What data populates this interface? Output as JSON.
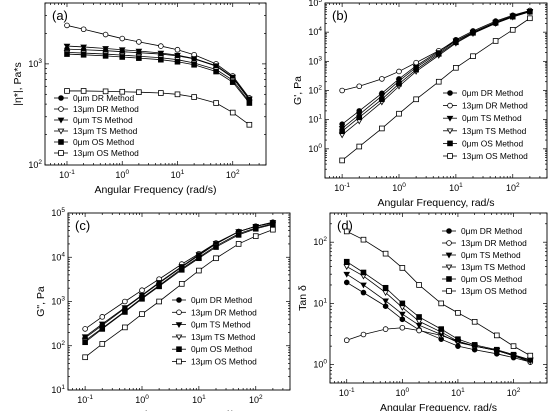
{
  "chart_data": [
    {
      "type": "scatter",
      "panel_label": "(a)",
      "xlabel": "Angular Frequency (rad/s)",
      "ylabel": "|η*|, Pa*s",
      "xscale": "log",
      "yscale": "log",
      "xlim": [
        0.04,
        400
      ],
      "ylim": [
        100,
        4000
      ],
      "x_ticks": [
        {
          "v": 0.1,
          "b": "10",
          "e": "-1"
        },
        {
          "v": 1,
          "b": "10",
          "e": "0"
        },
        {
          "v": 10,
          "b": "10",
          "e": "1"
        },
        {
          "v": 100,
          "b": "10",
          "e": "2"
        }
      ],
      "y_ticks": [
        {
          "v": 100,
          "b": "10",
          "e": "2"
        },
        {
          "v": 1000,
          "b": "10",
          "e": "3"
        }
      ],
      "legend_position": "lower-left",
      "series": [
        {
          "name": "0μm DR Method",
          "marker": "circle-filled",
          "x": [
            0.1,
            0.2,
            0.5,
            1,
            2,
            5,
            10,
            20,
            50,
            100,
            200
          ],
          "y": [
            1400,
            1380,
            1350,
            1320,
            1290,
            1250,
            1200,
            1120,
            950,
            730,
            440
          ]
        },
        {
          "name": "13μm DR Method",
          "marker": "circle-open",
          "x": [
            0.1,
            0.2,
            0.5,
            1,
            2,
            5,
            10,
            20,
            50,
            100,
            200
          ],
          "y": [
            2400,
            2200,
            1950,
            1780,
            1650,
            1500,
            1380,
            1230,
            1000,
            760,
            460
          ]
        },
        {
          "name": "0μm TS Method",
          "marker": "triangle-down-filled",
          "x": [
            0.1,
            0.2,
            0.5,
            1,
            2,
            5,
            10,
            20,
            50,
            100,
            200
          ],
          "y": [
            1500,
            1470,
            1420,
            1380,
            1340,
            1280,
            1220,
            1130,
            960,
            740,
            450
          ]
        },
        {
          "name": "13μm TS Method",
          "marker": "triangle-down-open",
          "x": [
            0.1,
            0.2,
            0.5,
            1,
            2,
            5,
            10,
            20,
            50,
            100,
            200
          ],
          "y": [
            1300,
            1280,
            1250,
            1220,
            1190,
            1150,
            1100,
            1020,
            880,
            690,
            420
          ]
        },
        {
          "name": "0μm OS Method",
          "marker": "square-filled",
          "x": [
            0.1,
            0.2,
            0.5,
            1,
            2,
            5,
            10,
            20,
            50,
            100,
            200
          ],
          "y": [
            1250,
            1230,
            1200,
            1170,
            1140,
            1100,
            1050,
            980,
            840,
            660,
            410
          ]
        },
        {
          "name": "13μm OS Method",
          "marker": "square-open",
          "x": [
            0.1,
            0.2,
            0.5,
            1,
            2,
            5,
            10,
            20,
            50,
            100,
            200
          ],
          "y": [
            540,
            540,
            535,
            530,
            525,
            515,
            500,
            470,
            410,
            330,
            250
          ]
        }
      ]
    },
    {
      "type": "scatter",
      "panel_label": "(b)",
      "xlabel": "Angular Frequency, rad/s",
      "ylabel": "G', Pa",
      "xscale": "log",
      "yscale": "log",
      "xlim": [
        0.05,
        400
      ],
      "ylim": [
        0.1,
        100000
      ],
      "x_ticks": [
        {
          "v": 0.1,
          "b": "10",
          "e": "-1"
        },
        {
          "v": 1,
          "b": "10",
          "e": "0"
        },
        {
          "v": 10,
          "b": "10",
          "e": "1"
        },
        {
          "v": 100,
          "b": "10",
          "e": "2"
        }
      ],
      "y_ticks": [
        {
          "v": 1,
          "b": "10",
          "e": "0"
        },
        {
          "v": 10,
          "b": "10",
          "e": "1"
        },
        {
          "v": 100,
          "b": "10",
          "e": "2"
        },
        {
          "v": 1000,
          "b": "10",
          "e": "3"
        },
        {
          "v": 10000,
          "b": "10",
          "e": "4"
        },
        {
          "v": 100000,
          "b": "10",
          "e": "5"
        }
      ],
      "legend_position": "lower-right",
      "series": [
        {
          "name": "0μm DR Method",
          "marker": "circle-filled",
          "x": [
            0.1,
            0.2,
            0.5,
            1,
            2,
            5,
            10,
            20,
            50,
            100,
            200
          ],
          "y": [
            7,
            20,
            80,
            250,
            700,
            2200,
            5500,
            11000,
            24000,
            38000,
            55000
          ]
        },
        {
          "name": "13μm DR Method",
          "marker": "circle-open",
          "x": [
            0.1,
            0.2,
            0.5,
            1,
            2,
            5,
            10,
            20,
            50,
            100,
            200
          ],
          "y": [
            100,
            140,
            250,
            450,
            900,
            2300,
            5000,
            9500,
            20000,
            35000,
            55000
          ]
        },
        {
          "name": "0μm TS Method",
          "marker": "triangle-down-filled",
          "x": [
            0.1,
            0.2,
            0.5,
            1,
            2,
            5,
            10,
            20,
            50,
            100,
            200
          ],
          "y": [
            5,
            15,
            65,
            210,
            620,
            2000,
            5000,
            10000,
            22000,
            36000,
            52000
          ]
        },
        {
          "name": "13μm TS Method",
          "marker": "triangle-down-open",
          "x": [
            0.1,
            0.2,
            0.5,
            1,
            2,
            5,
            10,
            20,
            50,
            100,
            200
          ],
          "y": [
            3,
            9,
            40,
            140,
            450,
            1600,
            4200,
            9000,
            20000,
            33000,
            50000
          ]
        },
        {
          "name": "0μm OS Method",
          "marker": "square-filled",
          "x": [
            0.1,
            0.2,
            0.5,
            1,
            2,
            5,
            10,
            20,
            50,
            100,
            200
          ],
          "y": [
            4,
            12,
            50,
            170,
            520,
            1800,
            4500,
            9500,
            21000,
            34000,
            50000
          ]
        },
        {
          "name": "13μm OS Method",
          "marker": "square-open",
          "x": [
            0.1,
            0.2,
            0.5,
            1,
            2,
            5,
            10,
            20,
            50,
            100,
            200
          ],
          "y": [
            0.4,
            1.2,
            5,
            16,
            50,
            200,
            600,
            1500,
            5000,
            12000,
            30000
          ]
        }
      ]
    },
    {
      "type": "scatter",
      "panel_label": "(c)",
      "xlabel": "Angular Frequency, rad/s",
      "ylabel": "G\", Pa",
      "xscale": "log",
      "yscale": "log",
      "xlim": [
        0.05,
        400
      ],
      "ylim": [
        10,
        100000
      ],
      "x_ticks": [
        {
          "v": 0.1,
          "b": "10",
          "e": "-1"
        },
        {
          "v": 1,
          "b": "10",
          "e": "0"
        },
        {
          "v": 10,
          "b": "10",
          "e": "1"
        },
        {
          "v": 100,
          "b": "10",
          "e": "2"
        }
      ],
      "y_ticks": [
        {
          "v": 10,
          "b": "10",
          "e": "1"
        },
        {
          "v": 100,
          "b": "10",
          "e": "2"
        },
        {
          "v": 1000,
          "b": "10",
          "e": "3"
        },
        {
          "v": 10000,
          "b": "10",
          "e": "4"
        },
        {
          "v": 100000,
          "b": "10",
          "e": "5"
        }
      ],
      "legend_position": "lower-right",
      "series": [
        {
          "name": "0μm DR Method",
          "marker": "circle-filled",
          "x": [
            0.1,
            0.2,
            0.5,
            1,
            2,
            5,
            10,
            20,
            50,
            100,
            200
          ],
          "y": [
            150,
            290,
            700,
            1350,
            2600,
            6000,
            11000,
            20000,
            38000,
            50000,
            62000
          ]
        },
        {
          "name": "13μm DR Method",
          "marker": "circle-open",
          "x": [
            0.1,
            0.2,
            0.5,
            1,
            2,
            5,
            10,
            20,
            50,
            100,
            200
          ],
          "y": [
            240,
            450,
            1000,
            1800,
            3200,
            7000,
            12000,
            21000,
            38000,
            50000,
            60000
          ]
        },
        {
          "name": "0μm TS Method",
          "marker": "triangle-down-filled",
          "x": [
            0.1,
            0.2,
            0.5,
            1,
            2,
            5,
            10,
            20,
            50,
            100,
            200
          ],
          "y": [
            160,
            310,
            730,
            1400,
            2700,
            6200,
            11500,
            20500,
            38000,
            50000,
            61000
          ]
        },
        {
          "name": "13μm TS Method",
          "marker": "triangle-down-open",
          "x": [
            0.1,
            0.2,
            0.5,
            1,
            2,
            5,
            10,
            20,
            50,
            100,
            200
          ],
          "y": [
            130,
            250,
            600,
            1200,
            2300,
            5500,
            10000,
            18000,
            34000,
            46000,
            57000
          ]
        },
        {
          "name": "0μm OS Method",
          "marker": "square-filled",
          "x": [
            0.1,
            0.2,
            0.5,
            1,
            2,
            5,
            10,
            20,
            50,
            100,
            200
          ],
          "y": [
            120,
            240,
            580,
            1150,
            2200,
            5200,
            9500,
            17000,
            32000,
            44000,
            55000
          ]
        },
        {
          "name": "13μm OS Method",
          "marker": "square-open",
          "x": [
            0.1,
            0.2,
            0.5,
            1,
            2,
            5,
            10,
            20,
            50,
            100,
            200
          ],
          "y": [
            55,
            110,
            260,
            520,
            1000,
            2500,
            5000,
            9500,
            20000,
            30000,
            42000
          ]
        }
      ]
    },
    {
      "type": "scatter",
      "panel_label": "(d)",
      "xlabel": "Angular Frequency, rad/s",
      "ylabel": "Tan δ",
      "xscale": "log",
      "yscale": "log",
      "xlim": [
        0.05,
        400
      ],
      "ylim": [
        0.5,
        300
      ],
      "x_ticks": [
        {
          "v": 0.1,
          "b": "10",
          "e": "-1"
        },
        {
          "v": 1,
          "b": "10",
          "e": "0"
        },
        {
          "v": 10,
          "b": "10",
          "e": "1"
        },
        {
          "v": 100,
          "b": "10",
          "e": "2"
        }
      ],
      "y_ticks": [
        {
          "v": 1,
          "b": "10",
          "e": "0"
        },
        {
          "v": 10,
          "b": "10",
          "e": "1"
        },
        {
          "v": 100,
          "b": "10",
          "e": "2"
        }
      ],
      "legend_position": "upper-right",
      "series": [
        {
          "name": "0μm DR Method",
          "marker": "circle-filled",
          "x": [
            0.1,
            0.2,
            0.5,
            1,
            2,
            5,
            10,
            20,
            50,
            100,
            200
          ],
          "y": [
            22,
            15,
            9,
            5.5,
            3.7,
            2.6,
            2,
            1.75,
            1.5,
            1.3,
            1.1
          ]
        },
        {
          "name": "13μm DR Method",
          "marker": "circle-open",
          "x": [
            0.1,
            0.2,
            0.5,
            1,
            2,
            5,
            10,
            20,
            50,
            100,
            200
          ],
          "y": [
            2.5,
            3.1,
            3.8,
            4.0,
            3.6,
            3.0,
            2.4,
            2.0,
            1.7,
            1.4,
            1.1
          ]
        },
        {
          "name": "0μm TS Method",
          "marker": "triangle-down-filled",
          "x": [
            0.1,
            0.2,
            0.5,
            1,
            2,
            5,
            10,
            20,
            50,
            100,
            200
          ],
          "y": [
            30,
            20,
            11,
            6.7,
            4.4,
            3.1,
            2.3,
            2.0,
            1.7,
            1.4,
            1.2
          ]
        },
        {
          "name": "13μm TS Method",
          "marker": "triangle-down-open",
          "x": [
            0.1,
            0.2,
            0.5,
            1,
            2,
            5,
            10,
            20,
            50,
            100,
            200
          ],
          "y": [
            40,
            28,
            15,
            8.6,
            5.1,
            3.4,
            2.4,
            2.0,
            1.7,
            1.4,
            1.15
          ]
        },
        {
          "name": "0μm OS Method",
          "marker": "square-filled",
          "x": [
            0.1,
            0.2,
            0.5,
            1,
            2,
            5,
            10,
            20,
            50,
            100,
            200
          ],
          "y": [
            48,
            32,
            18,
            10,
            6,
            3.8,
            2.6,
            2.1,
            1.75,
            1.45,
            1.2
          ]
        },
        {
          "name": "13μm OS Method",
          "marker": "square-open",
          "x": [
            0.1,
            0.2,
            0.5,
            1,
            2,
            5,
            10,
            20,
            50,
            100,
            200
          ],
          "y": [
            150,
            110,
            65,
            38,
            20,
            10,
            7,
            5,
            3,
            2,
            1.4
          ]
        }
      ]
    }
  ]
}
